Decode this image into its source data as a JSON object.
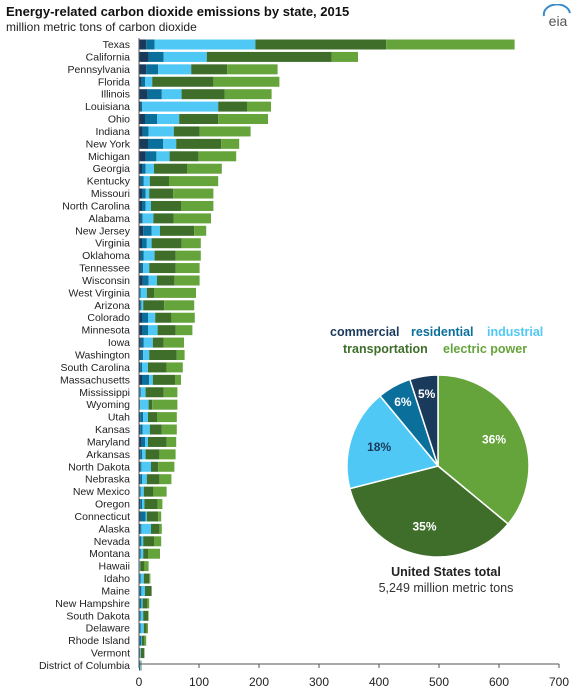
{
  "title": "Energy-related carbon dioxide emissions by state, 2015",
  "subtitle": "million metric tons of carbon dioxide",
  "logo_text": "eia",
  "colors": {
    "commercial": "#1a3a5c",
    "residential": "#0a6f9a",
    "industrial": "#4fc8f5",
    "transportation": "#3f6e2b",
    "electric": "#65a33b"
  },
  "chart_data": [
    {
      "type": "bar",
      "orientation": "horizontal",
      "stacked": true,
      "xlim": [
        0,
        700
      ],
      "xticks": [
        0,
        100,
        200,
        300,
        400,
        500,
        600,
        700
      ],
      "grid": false,
      "categories": [
        "Texas",
        "California",
        "Pennsylvania",
        "Florida",
        "Illinois",
        "Louisiana",
        "Ohio",
        "Indiana",
        "New York",
        "Michigan",
        "Georgia",
        "Kentucky",
        "Missouri",
        "North Carolina",
        "Alabama",
        "New Jersey",
        "Virginia",
        "Oklahoma",
        "Tennessee",
        "Wisconsin",
        "West Virginia",
        "Arizona",
        "Colorado",
        "Minnesota",
        "Iowa",
        "Washington",
        "South Carolina",
        "Massachusetts",
        "Mississippi",
        "Wyoming",
        "Utah",
        "Kansas",
        "Maryland",
        "Arkansas",
        "North Dakota",
        "Nebraska",
        "New Mexico",
        "Oregon",
        "Connecticut",
        "Alaska",
        "Nevada",
        "Montana",
        "Hawaii",
        "Idaho",
        "Maine",
        "New Hampshire",
        "South Dakota",
        "Delaware",
        "Rhode Island",
        "Vermont",
        "District of Columbia"
      ],
      "series": [
        {
          "name": "commercial",
          "values": [
            12,
            16,
            12,
            4,
            14,
            3,
            10,
            6,
            15,
            11,
            5,
            3,
            5,
            5,
            3,
            7,
            5,
            3,
            3,
            6,
            1,
            2,
            5,
            5,
            3,
            3,
            2,
            5,
            1,
            1,
            2,
            2,
            4,
            2,
            2,
            2,
            1,
            2,
            3,
            2,
            1,
            1,
            1,
            1,
            1,
            1,
            1,
            1,
            1,
            1,
            1
          ]
        },
        {
          "name": "residential",
          "values": [
            14,
            25,
            20,
            6,
            24,
            2,
            20,
            10,
            25,
            18,
            6,
            5,
            6,
            6,
            3,
            14,
            8,
            5,
            4,
            10,
            2,
            2,
            10,
            10,
            5,
            4,
            3,
            12,
            2,
            1,
            5,
            4,
            6,
            3,
            2,
            3,
            2,
            3,
            8,
            2,
            3,
            2,
            0,
            2,
            3,
            3,
            2,
            2,
            3,
            1,
            1
          ]
        },
        {
          "name": "industrial",
          "values": [
            168,
            72,
            55,
            12,
            33,
            127,
            37,
            42,
            22,
            22,
            14,
            10,
            6,
            9,
            18,
            14,
            8,
            18,
            10,
            14,
            10,
            3,
            12,
            16,
            15,
            10,
            10,
            6,
            8,
            14,
            8,
            12,
            5,
            6,
            16,
            8,
            5,
            4,
            2,
            16,
            3,
            4,
            1,
            5,
            6,
            2,
            4,
            5,
            1,
            1,
            1
          ]
        },
        {
          "name": "transportation",
          "values": [
            218,
            208,
            60,
            102,
            72,
            48,
            65,
            43,
            75,
            48,
            55,
            32,
            40,
            50,
            34,
            57,
            50,
            35,
            44,
            29,
            12,
            35,
            27,
            30,
            18,
            46,
            31,
            37,
            30,
            6,
            15,
            20,
            31,
            23,
            12,
            21,
            16,
            22,
            19,
            14,
            18,
            8,
            7,
            9,
            11,
            8,
            8,
            5,
            4,
            6,
            1
          ]
        },
        {
          "name": "electric power",
          "values": [
            214,
            44,
            84,
            110,
            78,
            40,
            83,
            85,
            30,
            63,
            58,
            82,
            67,
            54,
            62,
            20,
            32,
            42,
            40,
            42,
            70,
            50,
            39,
            28,
            34,
            13,
            27,
            10,
            23,
            42,
            33,
            25,
            16,
            27,
            27,
            20,
            22,
            8,
            5,
            4,
            12,
            20,
            7,
            2,
            0,
            3,
            1,
            2,
            3,
            0,
            0
          ]
        }
      ]
    },
    {
      "type": "pie",
      "title": "United States total",
      "subtitle": "5,249 million metric tons",
      "legend": [
        "commercial",
        "residential",
        "industrial",
        "transportation",
        "electric power"
      ],
      "slices": [
        {
          "name": "electric power",
          "value": 36,
          "label": "36%"
        },
        {
          "name": "transportation",
          "value": 35,
          "label": "35%"
        },
        {
          "name": "industrial",
          "value": 18,
          "label": "18%"
        },
        {
          "name": "residential",
          "value": 6,
          "label": "6%"
        },
        {
          "name": "commercial",
          "value": 5,
          "label": "5%"
        }
      ]
    }
  ]
}
